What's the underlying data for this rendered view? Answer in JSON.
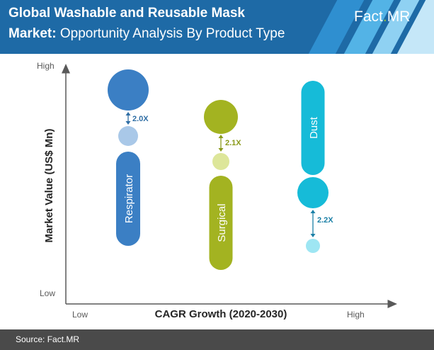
{
  "header": {
    "title_line1": "Global Washable and Reusable Mask",
    "title_line2_bold": "Market:",
    "title_line2_rest": " Opportunity Analysis By Product Type",
    "logo_main": "Fact",
    "logo_dot": ".",
    "logo_suffix": "MR",
    "colors": {
      "background": "#1e6aa6",
      "logo_dot": "#8cc63f"
    }
  },
  "footer": {
    "source": "Source: Fact.MR",
    "background": "#4a4a4a"
  },
  "chart_data": {
    "type": "bubble",
    "title": "",
    "xlabel": "CAGR Growth (2020-2030)",
    "ylabel": "Market Value (US$ Mn)",
    "x_ticks": [
      "Low",
      "High"
    ],
    "y_ticks": [
      "High",
      "Low"
    ],
    "grid": false,
    "legend": "none",
    "series": [
      {
        "name": "Respirator",
        "multiplier": "2.0X",
        "color": "#3b7fc4",
        "light_color": "#a9c8e8",
        "label_color": "#2e6da4"
      },
      {
        "name": "Surgical",
        "multiplier": "2.1X",
        "color": "#a3b321",
        "light_color": "#dde69a",
        "label_color": "#8a9a1a"
      },
      {
        "name": "Dust",
        "multiplier": "2.2X",
        "color": "#16bbd8",
        "light_color": "#9ee6f3",
        "label_color": "#1a7fa6"
      }
    ]
  }
}
